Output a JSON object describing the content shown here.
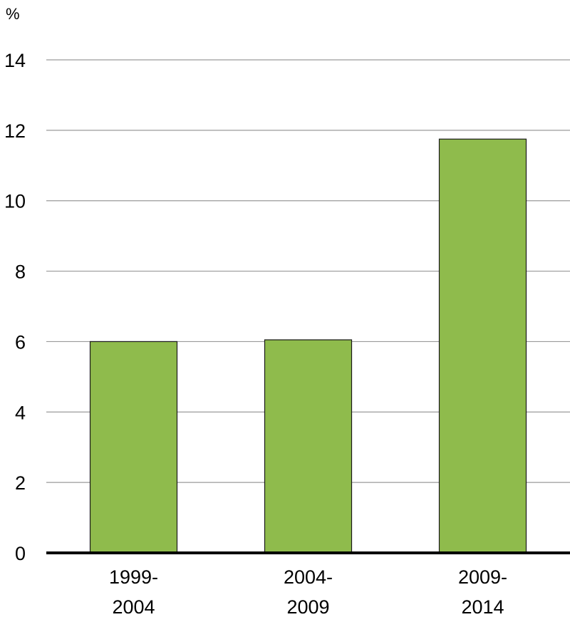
{
  "chart_data": {
    "type": "bar",
    "title": "",
    "xlabel": "",
    "ylabel": "",
    "unit_label": "%",
    "categories": [
      [
        "1999-",
        "2004"
      ],
      [
        "2004-",
        "2009"
      ],
      [
        "2009-",
        "2014"
      ]
    ],
    "values": [
      6.0,
      6.05,
      11.75
    ],
    "ylim": [
      0,
      14
    ],
    "yticks": [
      "0",
      "2",
      "4",
      "6",
      "8",
      "10",
      "12",
      "14"
    ],
    "grid": true,
    "legend": "none",
    "bar_color": "#8fbb4c",
    "grid_color": "#9a9a9a",
    "axis_color": "#000000"
  }
}
